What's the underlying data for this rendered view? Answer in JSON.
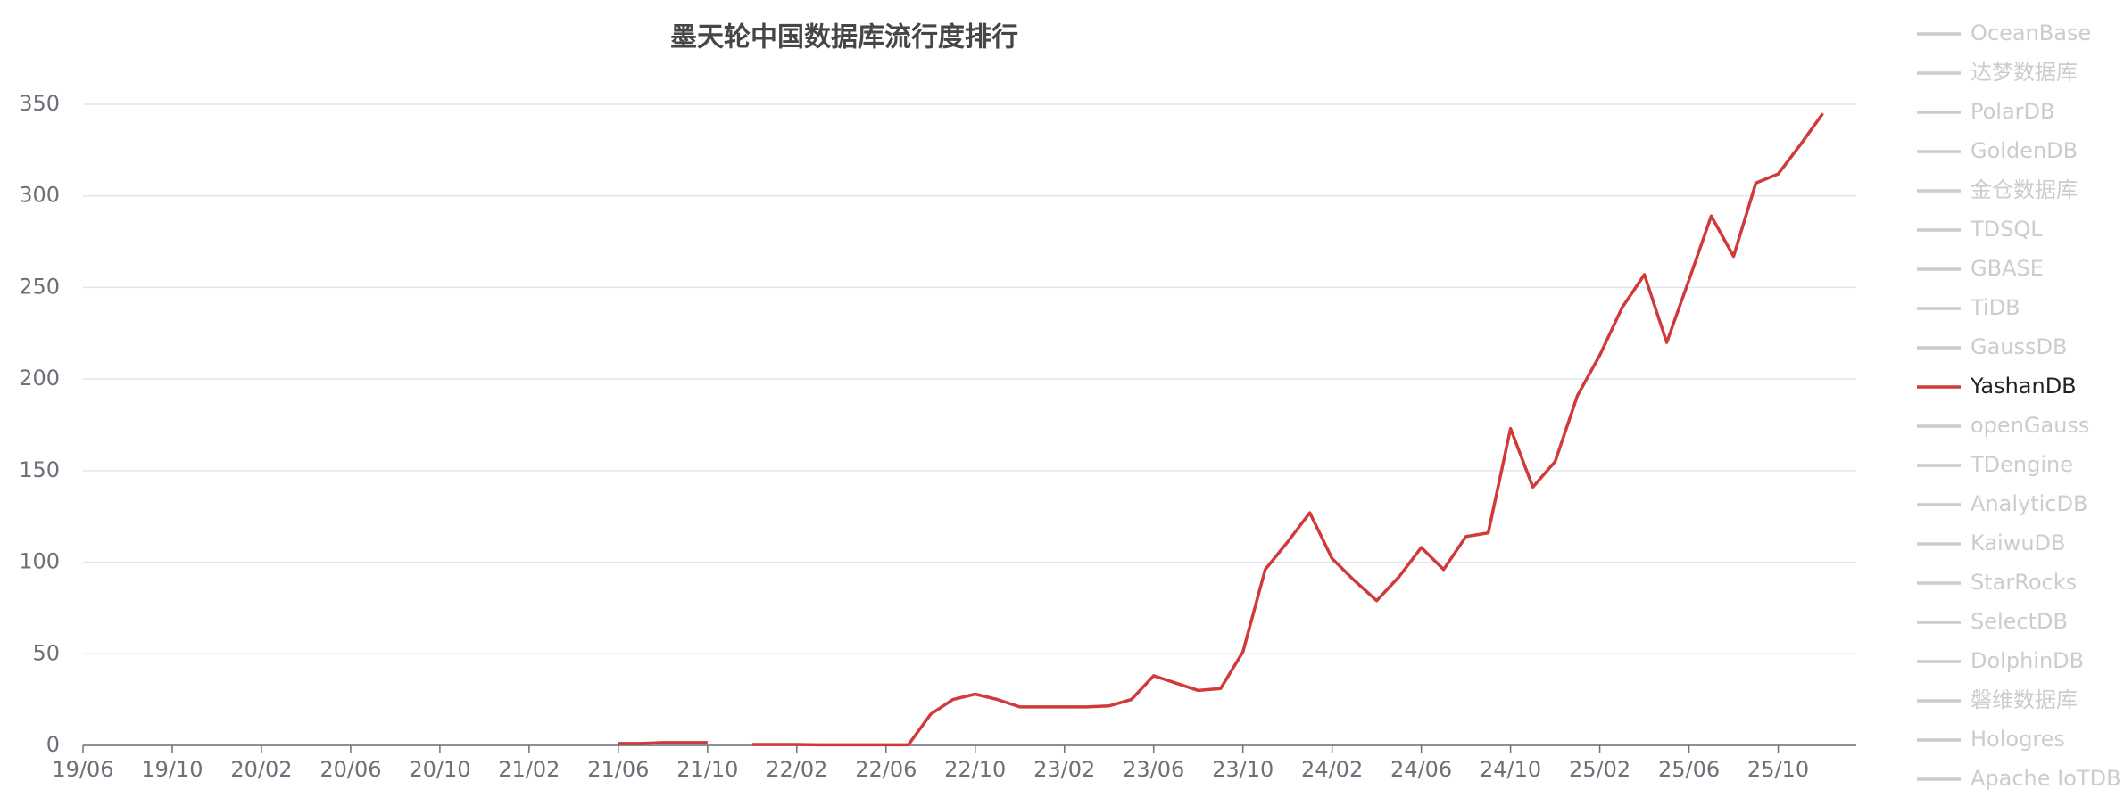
{
  "chart_data": {
    "type": "line",
    "title": "墨天轮中国数据库流行度排行",
    "categories": [
      "19/06",
      null,
      null,
      null,
      "19/10",
      null,
      null,
      null,
      "20/02",
      null,
      null,
      null,
      "20/06",
      null,
      null,
      null,
      "20/10",
      null,
      null,
      null,
      "21/02",
      null,
      null,
      null,
      "21/06",
      null,
      null,
      null,
      "21/10",
      null,
      null,
      null,
      "22/02",
      null,
      null,
      null,
      "22/06",
      null,
      null,
      null,
      "22/10",
      null,
      null,
      null,
      "23/02",
      null,
      null,
      null,
      "23/06",
      null,
      null,
      null,
      "23/10",
      null,
      null,
      null,
      "24/02",
      null,
      null,
      null,
      "24/06",
      null,
      null,
      null,
      "24/10",
      null,
      null,
      null,
      "25/02",
      null,
      null,
      null,
      "25/06",
      null,
      null,
      null,
      "25/10",
      null,
      null
    ],
    "series": [
      {
        "name": "OceanBase",
        "color": "#cccccc",
        "visible": false
      },
      {
        "name": "达梦数据库",
        "color": "#cccccc",
        "visible": false
      },
      {
        "name": "PolarDB",
        "color": "#cccccc",
        "visible": false
      },
      {
        "name": "GoldenDB",
        "color": "#cccccc",
        "visible": false
      },
      {
        "name": "金仓数据库",
        "color": "#cccccc",
        "visible": false
      },
      {
        "name": "TDSQL",
        "color": "#cccccc",
        "visible": false
      },
      {
        "name": "GBASE",
        "color": "#cccccc",
        "visible": false
      },
      {
        "name": "TiDB",
        "color": "#cccccc",
        "visible": false
      },
      {
        "name": "GaussDB",
        "color": "#cccccc",
        "visible": false
      },
      {
        "name": "YashanDB",
        "color": "#d03a3a",
        "visible": true,
        "values": [
          null,
          null,
          null,
          null,
          null,
          null,
          null,
          null,
          null,
          null,
          null,
          null,
          null,
          null,
          null,
          null,
          null,
          null,
          null,
          null,
          null,
          null,
          null,
          null,
          1,
          1,
          1.5,
          1.5,
          1.5,
          null,
          0.5,
          0.5,
          0.5,
          0.3,
          0.3,
          0.3,
          0.3,
          0.3,
          17,
          25,
          28,
          25,
          21,
          21,
          21,
          21,
          21.5,
          25,
          38,
          34,
          30,
          31,
          51,
          96,
          111,
          127,
          102,
          90,
          79,
          92,
          108,
          96,
          114,
          116,
          173,
          141,
          155,
          191,
          213,
          239,
          257,
          220,
          254,
          289,
          267,
          307,
          312,
          328,
          345
        ]
      },
      {
        "name": "openGauss",
        "color": "#cccccc",
        "visible": false
      },
      {
        "name": "TDengine",
        "color": "#cccccc",
        "visible": false
      },
      {
        "name": "AnalyticDB",
        "color": "#cccccc",
        "visible": false
      },
      {
        "name": "KaiwuDB",
        "color": "#cccccc",
        "visible": false
      },
      {
        "name": "StarRocks",
        "color": "#cccccc",
        "visible": false
      },
      {
        "name": "SelectDB",
        "color": "#cccccc",
        "visible": false
      },
      {
        "name": "DolphinDB",
        "color": "#cccccc",
        "visible": false
      },
      {
        "name": "磐维数据库",
        "color": "#cccccc",
        "visible": false
      },
      {
        "name": "Hologres",
        "color": "#cccccc",
        "visible": false
      },
      {
        "name": "Apache IoTDB",
        "color": "#cccccc",
        "visible": false
      }
    ],
    "ylim": [
      0,
      350
    ],
    "yticks": [
      0,
      50,
      100,
      150,
      200,
      250,
      300,
      350
    ],
    "grid": true,
    "legend": "right"
  }
}
